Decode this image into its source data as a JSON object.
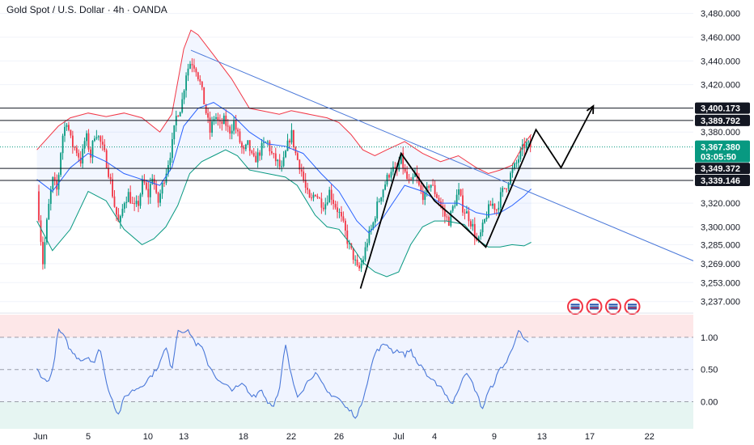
{
  "title": "Gold Spot / U.S. Dollar · 4h · OANDA",
  "colors": {
    "up": "#089981",
    "down": "#f23645",
    "bb_upper": "#f23645",
    "bb_lower": "#089981",
    "bb_basis": "#2962ff",
    "trendline": "#4a78d9",
    "rsi_line": "#4a78d9",
    "current_price": "#089981",
    "dark_tag": "#131722"
  },
  "chart_data": [
    {
      "type": "candlestick",
      "symbol": "XAUUSD",
      "timeframe": "4h",
      "ylim": [
        3230,
        3490
      ],
      "y_ticks": [
        "3,480.000",
        "3,460.000",
        "3,440.000",
        "3,420.000",
        "3,380.000",
        "3,320.000",
        "3,300.000",
        "3,285.000",
        "3,269.000",
        "3,253.000",
        "3,237.000"
      ],
      "x_ticks": [
        {
          "label": "Jun",
          "day": 0
        },
        {
          "label": "5",
          "day": 4
        },
        {
          "label": "10",
          "day": 9
        },
        {
          "label": "13",
          "day": 12
        },
        {
          "label": "18",
          "day": 17
        },
        {
          "label": "22",
          "day": 21
        },
        {
          "label": "26",
          "day": 25
        },
        {
          "label": "Jul",
          "day": 30
        },
        {
          "label": "4",
          "day": 33
        },
        {
          "label": "9",
          "day": 38
        },
        {
          "label": "13",
          "day": 42
        },
        {
          "label": "17",
          "day": 46
        },
        {
          "label": "22",
          "day": 51
        }
      ],
      "horizontal_levels": [
        {
          "price": 3400.173,
          "label": "3,400.173"
        },
        {
          "price": 3389.792,
          "label": "3,389.792"
        },
        {
          "price": 3349.372,
          "label": "3,349.372"
        },
        {
          "price": 3339.146,
          "label": "3,339.146"
        }
      ],
      "current_price": {
        "price": 3367.38,
        "label": "3,367.380",
        "countdown": "03:05:50"
      },
      "anchors": [
        [
          -0.3,
          3330
        ],
        [
          0.2,
          3270
        ],
        [
          0.6,
          3310
        ],
        [
          1.0,
          3340
        ],
        [
          1.4,
          3330
        ],
        [
          1.8,
          3375
        ],
        [
          2.2,
          3390
        ],
        [
          2.6,
          3370
        ],
        [
          3.0,
          3365
        ],
        [
          3.4,
          3355
        ],
        [
          3.8,
          3378
        ],
        [
          4.2,
          3360
        ],
        [
          4.6,
          3382
        ],
        [
          5.0,
          3372
        ],
        [
          5.4,
          3360
        ],
        [
          5.8,
          3342
        ],
        [
          6.2,
          3318
        ],
        [
          6.6,
          3300
        ],
        [
          7.0,
          3322
        ],
        [
          7.4,
          3328
        ],
        [
          7.8,
          3315
        ],
        [
          8.2,
          3320
        ],
        [
          8.6,
          3340
        ],
        [
          9.0,
          3325
        ],
        [
          9.4,
          3345
        ],
        [
          9.8,
          3318
        ],
        [
          10.2,
          3335
        ],
        [
          10.6,
          3350
        ],
        [
          11.0,
          3368
        ],
        [
          11.4,
          3395
        ],
        [
          11.8,
          3402
        ],
        [
          12.2,
          3430
        ],
        [
          12.6,
          3440
        ],
        [
          13.0,
          3435
        ],
        [
          13.4,
          3420
        ],
        [
          13.8,
          3400
        ],
        [
          14.2,
          3380
        ],
        [
          14.6,
          3395
        ],
        [
          15.0,
          3385
        ],
        [
          15.4,
          3390
        ],
        [
          15.8,
          3380
        ],
        [
          16.2,
          3388
        ],
        [
          16.6,
          3375
        ],
        [
          17.0,
          3362
        ],
        [
          17.4,
          3370
        ],
        [
          17.8,
          3355
        ],
        [
          18.2,
          3360
        ],
        [
          18.6,
          3368
        ],
        [
          19.0,
          3372
        ],
        [
          19.4,
          3360
        ],
        [
          19.8,
          3355
        ],
        [
          20.2,
          3348
        ],
        [
          20.6,
          3365
        ],
        [
          21.0,
          3380
        ],
        [
          21.4,
          3360
        ],
        [
          21.8,
          3350
        ],
        [
          22.2,
          3332
        ],
        [
          22.6,
          3320
        ],
        [
          23.0,
          3330
        ],
        [
          23.4,
          3322
        ],
        [
          23.8,
          3318
        ],
        [
          24.2,
          3330
        ],
        [
          24.6,
          3320
        ],
        [
          25.0,
          3312
        ],
        [
          25.4,
          3300
        ],
        [
          25.8,
          3285
        ],
        [
          26.2,
          3275
        ],
        [
          26.6,
          3262
        ],
        [
          27.0,
          3272
        ],
        [
          27.4,
          3290
        ],
        [
          27.8,
          3300
        ],
        [
          28.2,
          3318
        ],
        [
          28.6,
          3330
        ],
        [
          29.0,
          3340
        ],
        [
          29.4,
          3350
        ],
        [
          29.8,
          3345
        ],
        [
          30.2,
          3358
        ],
        [
          30.6,
          3342
        ],
        [
          31.0,
          3335
        ],
        [
          31.4,
          3345
        ],
        [
          31.8,
          3330
        ],
        [
          32.2,
          3325
        ],
        [
          32.6,
          3338
        ],
        [
          33.0,
          3330
        ],
        [
          33.4,
          3322
        ],
        [
          33.8,
          3310
        ],
        [
          34.2,
          3305
        ],
        [
          34.6,
          3318
        ],
        [
          35.0,
          3330
        ],
        [
          35.4,
          3315
        ],
        [
          35.8,
          3310
        ],
        [
          36.2,
          3300
        ],
        [
          36.6,
          3285
        ],
        [
          37.0,
          3298
        ],
        [
          37.4,
          3312
        ],
        [
          37.8,
          3320
        ],
        [
          38.2,
          3315
        ],
        [
          38.6,
          3328
        ],
        [
          39.0,
          3335
        ],
        [
          39.4,
          3345
        ],
        [
          39.8,
          3352
        ],
        [
          40.2,
          3362
        ],
        [
          40.6,
          3370
        ],
        [
          41.0,
          3368
        ]
      ],
      "bollinger_anchors": {
        "upper": [
          [
            -0.3,
            3365
          ],
          [
            1.5,
            3385
          ],
          [
            2.5,
            3392
          ],
          [
            4.0,
            3396
          ],
          [
            5.5,
            3393
          ],
          [
            7.0,
            3396
          ],
          [
            8.5,
            3392
          ],
          [
            10.0,
            3380
          ],
          [
            11.0,
            3395
          ],
          [
            12.0,
            3450
          ],
          [
            12.6,
            3466
          ],
          [
            13.2,
            3462
          ],
          [
            14.5,
            3445
          ],
          [
            16.0,
            3425
          ],
          [
            17.5,
            3400
          ],
          [
            18.5,
            3398
          ],
          [
            20.0,
            3395
          ],
          [
            21.0,
            3398
          ],
          [
            22.5,
            3395
          ],
          [
            24.0,
            3392
          ],
          [
            25.0,
            3388
          ],
          [
            26.0,
            3378
          ],
          [
            27.0,
            3365
          ],
          [
            28.0,
            3360
          ],
          [
            29.0,
            3365
          ],
          [
            30.5,
            3372
          ],
          [
            32.0,
            3362
          ],
          [
            33.5,
            3355
          ],
          [
            35.0,
            3360
          ],
          [
            36.5,
            3350
          ],
          [
            37.5,
            3345
          ],
          [
            38.5,
            3348
          ],
          [
            39.5,
            3352
          ],
          [
            40.5,
            3370
          ],
          [
            41.1,
            3378
          ]
        ],
        "basis": [
          [
            -0.3,
            3340
          ],
          [
            1.0,
            3330
          ],
          [
            2.5,
            3350
          ],
          [
            4.0,
            3362
          ],
          [
            5.5,
            3355
          ],
          [
            7.0,
            3345
          ],
          [
            8.5,
            3340
          ],
          [
            10.0,
            3335
          ],
          [
            11.0,
            3350
          ],
          [
            12.0,
            3385
          ],
          [
            13.2,
            3400
          ],
          [
            14.5,
            3405
          ],
          [
            16.0,
            3395
          ],
          [
            17.5,
            3380
          ],
          [
            19.0,
            3370
          ],
          [
            20.5,
            3368
          ],
          [
            22.0,
            3362
          ],
          [
            23.5,
            3345
          ],
          [
            25.0,
            3330
          ],
          [
            26.5,
            3305
          ],
          [
            27.5,
            3295
          ],
          [
            28.5,
            3305
          ],
          [
            29.5,
            3320
          ],
          [
            30.5,
            3335
          ],
          [
            32.0,
            3330
          ],
          [
            33.5,
            3320
          ],
          [
            35.0,
            3320
          ],
          [
            36.5,
            3312
          ],
          [
            37.5,
            3310
          ],
          [
            38.5,
            3312
          ],
          [
            39.5,
            3318
          ],
          [
            40.5,
            3326
          ],
          [
            41.1,
            3332
          ]
        ],
        "lower": [
          [
            -0.3,
            3305
          ],
          [
            1.0,
            3280
          ],
          [
            2.5,
            3298
          ],
          [
            4.0,
            3330
          ],
          [
            5.5,
            3322
          ],
          [
            7.0,
            3298
          ],
          [
            8.5,
            3285
          ],
          [
            9.5,
            3290
          ],
          [
            10.5,
            3300
          ],
          [
            11.5,
            3318
          ],
          [
            12.5,
            3345
          ],
          [
            13.5,
            3355
          ],
          [
            14.5,
            3360
          ],
          [
            15.5,
            3365
          ],
          [
            16.5,
            3360
          ],
          [
            17.5,
            3348
          ],
          [
            19.0,
            3345
          ],
          [
            20.5,
            3342
          ],
          [
            21.5,
            3335
          ],
          [
            23.0,
            3310
          ],
          [
            24.0,
            3300
          ],
          [
            25.0,
            3298
          ],
          [
            26.0,
            3285
          ],
          [
            27.0,
            3270
          ],
          [
            28.0,
            3262
          ],
          [
            29.0,
            3258
          ],
          [
            30.0,
            3262
          ],
          [
            31.0,
            3285
          ],
          [
            32.0,
            3300
          ],
          [
            33.0,
            3305
          ],
          [
            34.0,
            3305
          ],
          [
            35.5,
            3302
          ],
          [
            36.5,
            3290
          ],
          [
            37.5,
            3283
          ],
          [
            38.5,
            3283
          ],
          [
            39.5,
            3285
          ],
          [
            40.5,
            3284
          ],
          [
            41.1,
            3287
          ]
        ]
      },
      "trendline": {
        "from": {
          "day": 12.6,
          "price": 3449
        },
        "to": {
          "day": 55.0,
          "price": 3270
        }
      },
      "pattern_path": [
        {
          "day": 26.8,
          "price": 3248
        },
        {
          "day": 30.2,
          "price": 3362
        },
        {
          "day": 33.0,
          "price": 3322
        },
        {
          "day": 35.3,
          "price": 3302
        },
        {
          "day": 37.3,
          "price": 3283
        },
        {
          "day": 41.5,
          "price": 3382
        },
        {
          "day": 43.6,
          "price": 3350
        },
        {
          "day": 46.3,
          "price": 3402
        }
      ],
      "bar_markers": [
        "event-flag-icon",
        "event-flag-icon",
        "event-flag-icon",
        "event-flag-icon"
      ]
    },
    {
      "type": "line",
      "indicator": "oscillator",
      "ylim": [
        -0.42,
        1.35
      ],
      "y_ticks": [
        "1.00",
        "0.50",
        "0.00"
      ],
      "bands": [
        1.0,
        0.5,
        0.0
      ],
      "anchors": [
        [
          -0.3,
          0.5
        ],
        [
          0.5,
          0.3
        ],
        [
          1.0,
          0.45
        ],
        [
          1.5,
          1.12
        ],
        [
          2.0,
          1.0
        ],
        [
          2.5,
          0.8
        ],
        [
          3.0,
          0.7
        ],
        [
          3.5,
          0.65
        ],
        [
          4.0,
          0.7
        ],
        [
          4.5,
          0.6
        ],
        [
          5.0,
          0.85
        ],
        [
          5.5,
          0.3
        ],
        [
          6.0,
          0.05
        ],
        [
          6.5,
          -0.22
        ],
        [
          7.0,
          0.05
        ],
        [
          7.5,
          0.15
        ],
        [
          8.0,
          0.2
        ],
        [
          8.5,
          0.25
        ],
        [
          9.0,
          0.35
        ],
        [
          9.5,
          0.45
        ],
        [
          10.0,
          0.6
        ],
        [
          10.5,
          0.85
        ],
        [
          11.0,
          0.5
        ],
        [
          11.5,
          1.12
        ],
        [
          12.0,
          1.1
        ],
        [
          12.5,
          1.08
        ],
        [
          13.0,
          0.9
        ],
        [
          13.5,
          0.85
        ],
        [
          14.0,
          0.6
        ],
        [
          14.5,
          0.45
        ],
        [
          15.0,
          0.3
        ],
        [
          15.5,
          0.25
        ],
        [
          16.0,
          0.2
        ],
        [
          16.5,
          0.22
        ],
        [
          17.0,
          0.28
        ],
        [
          17.5,
          0.12
        ],
        [
          18.0,
          0.1
        ],
        [
          18.5,
          0.2
        ],
        [
          19.0,
          0.0
        ],
        [
          19.5,
          -0.05
        ],
        [
          20.0,
          0.15
        ],
        [
          20.5,
          0.9
        ],
        [
          21.0,
          0.4
        ],
        [
          21.5,
          0.1
        ],
        [
          22.0,
          0.2
        ],
        [
          22.5,
          0.35
        ],
        [
          23.0,
          0.45
        ],
        [
          23.5,
          0.3
        ],
        [
          24.0,
          0.15
        ],
        [
          24.5,
          0.1
        ],
        [
          25.0,
          0.05
        ],
        [
          25.5,
          -0.08
        ],
        [
          26.0,
          -0.15
        ],
        [
          26.5,
          -0.25
        ],
        [
          27.0,
          0.05
        ],
        [
          27.5,
          0.4
        ],
        [
          28.0,
          0.75
        ],
        [
          28.5,
          0.85
        ],
        [
          29.0,
          0.9
        ],
        [
          29.5,
          0.78
        ],
        [
          30.0,
          0.8
        ],
        [
          30.5,
          0.72
        ],
        [
          31.0,
          0.82
        ],
        [
          31.5,
          0.6
        ],
        [
          32.0,
          0.55
        ],
        [
          32.5,
          0.35
        ],
        [
          33.0,
          0.3
        ],
        [
          33.5,
          0.25
        ],
        [
          34.0,
          0.1
        ],
        [
          34.5,
          -0.05
        ],
        [
          35.0,
          0.2
        ],
        [
          35.5,
          0.45
        ],
        [
          36.0,
          0.35
        ],
        [
          36.5,
          0.15
        ],
        [
          37.0,
          -0.12
        ],
        [
          37.5,
          0.15
        ],
        [
          38.0,
          0.3
        ],
        [
          38.5,
          0.52
        ],
        [
          39.0,
          0.6
        ],
        [
          39.5,
          0.82
        ],
        [
          40.0,
          1.12
        ],
        [
          40.5,
          0.95
        ],
        [
          41.0,
          0.88
        ]
      ]
    }
  ]
}
